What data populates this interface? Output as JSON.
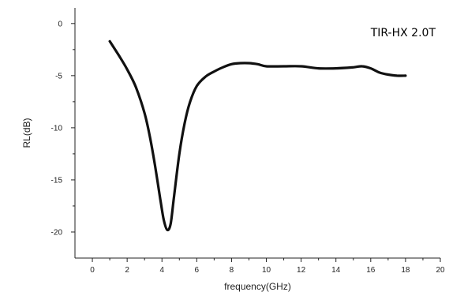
{
  "chart_data": {
    "type": "line",
    "annotation": "TIR-HX 2.0T",
    "xlabel": "frequency(GHz)",
    "ylabel": "RL(dB)",
    "xlim": [
      -1,
      20
    ],
    "ylim": [
      -22.5,
      1.5
    ],
    "x_ticks": [
      0,
      2,
      4,
      6,
      8,
      10,
      12,
      14,
      16,
      18,
      20
    ],
    "y_ticks": [
      0,
      -5,
      -10,
      -15,
      -20
    ],
    "grid": false,
    "series": [
      {
        "color": "#111111",
        "x": [
          1.0,
          1.5,
          2.0,
          2.5,
          3.0,
          3.3,
          3.6,
          3.9,
          4.1,
          4.3,
          4.5,
          4.7,
          5.0,
          5.3,
          5.6,
          6.0,
          6.5,
          7.0,
          7.5,
          8.0,
          8.5,
          9.0,
          9.5,
          10.0,
          11.0,
          12.0,
          13.0,
          14.0,
          15.0,
          15.5,
          16.0,
          16.5,
          17.0,
          17.5,
          18.0
        ],
        "y": [
          -1.7,
          -3.0,
          -4.4,
          -6.1,
          -8.6,
          -10.8,
          -13.6,
          -16.8,
          -18.8,
          -19.8,
          -19.2,
          -16.5,
          -12.5,
          -9.6,
          -7.6,
          -6.0,
          -5.1,
          -4.6,
          -4.2,
          -3.9,
          -3.8,
          -3.8,
          -3.9,
          -4.1,
          -4.1,
          -4.1,
          -4.3,
          -4.3,
          -4.2,
          -4.1,
          -4.3,
          -4.7,
          -4.9,
          -5.0,
          -5.0
        ]
      }
    ]
  }
}
